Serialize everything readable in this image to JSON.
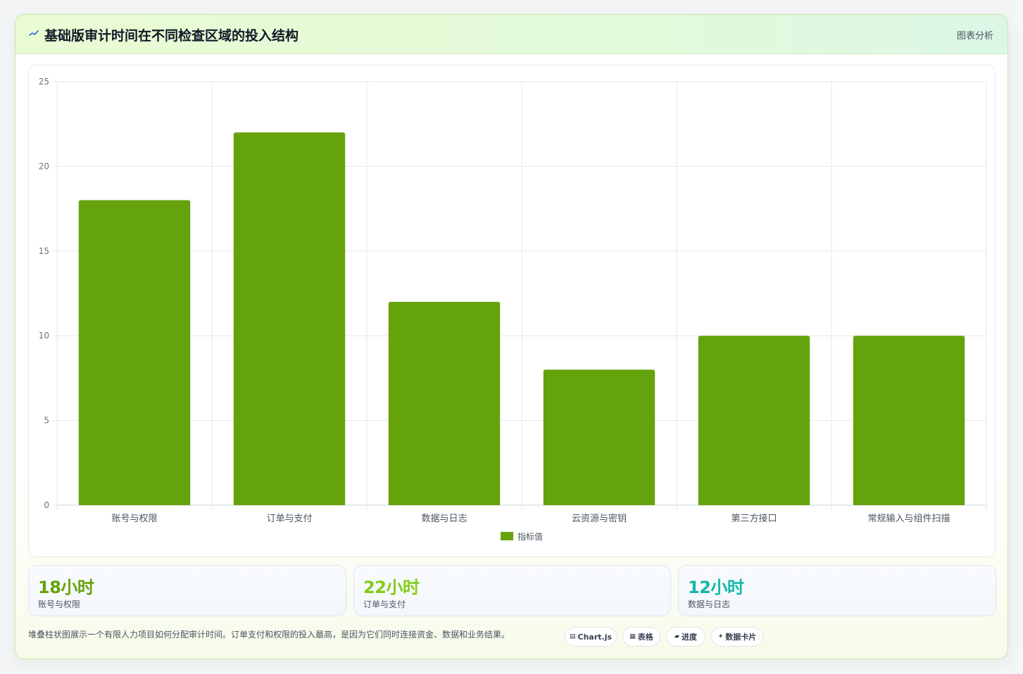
{
  "header": {
    "title": "基础版审计时间在不同检查区域的投入结构",
    "link_label": "图表分析",
    "icon": "chart-line-icon"
  },
  "chart_data": {
    "type": "bar",
    "categories": [
      "账号与权限",
      "订单与支付",
      "数据与日志",
      "云资源与密钥",
      "第三方接口",
      "常规输入与组件扫描"
    ],
    "series": [
      {
        "name": "指标值",
        "values": [
          18,
          22,
          12,
          8,
          10,
          10
        ],
        "color": "#65a30d"
      }
    ],
    "ylim": [
      0,
      25
    ],
    "yticks": [
      0,
      5,
      10,
      15,
      20,
      25
    ],
    "grid": true,
    "legend": "bottom-center"
  },
  "stats": [
    {
      "value": "18小时",
      "label": "账号与权限",
      "color": "#65a30d"
    },
    {
      "value": "22小时",
      "label": "订单与支付",
      "color": "#84cc16"
    },
    {
      "value": "12小时",
      "label": "数据与日志",
      "color": "#14b8a6"
    }
  ],
  "footnote": "堆叠柱状图展示一个有限人力项目如何分配审计时间。订单支付和权限的投入最高，是因为它们同时连接资金、数据和业务结果。",
  "tags": [
    {
      "icon": "▤",
      "label": "Chart.js"
    },
    {
      "icon": "▦",
      "label": "表格"
    },
    {
      "icon": "▰",
      "label": "进度"
    },
    {
      "icon": "✦",
      "label": "数据卡片"
    }
  ]
}
